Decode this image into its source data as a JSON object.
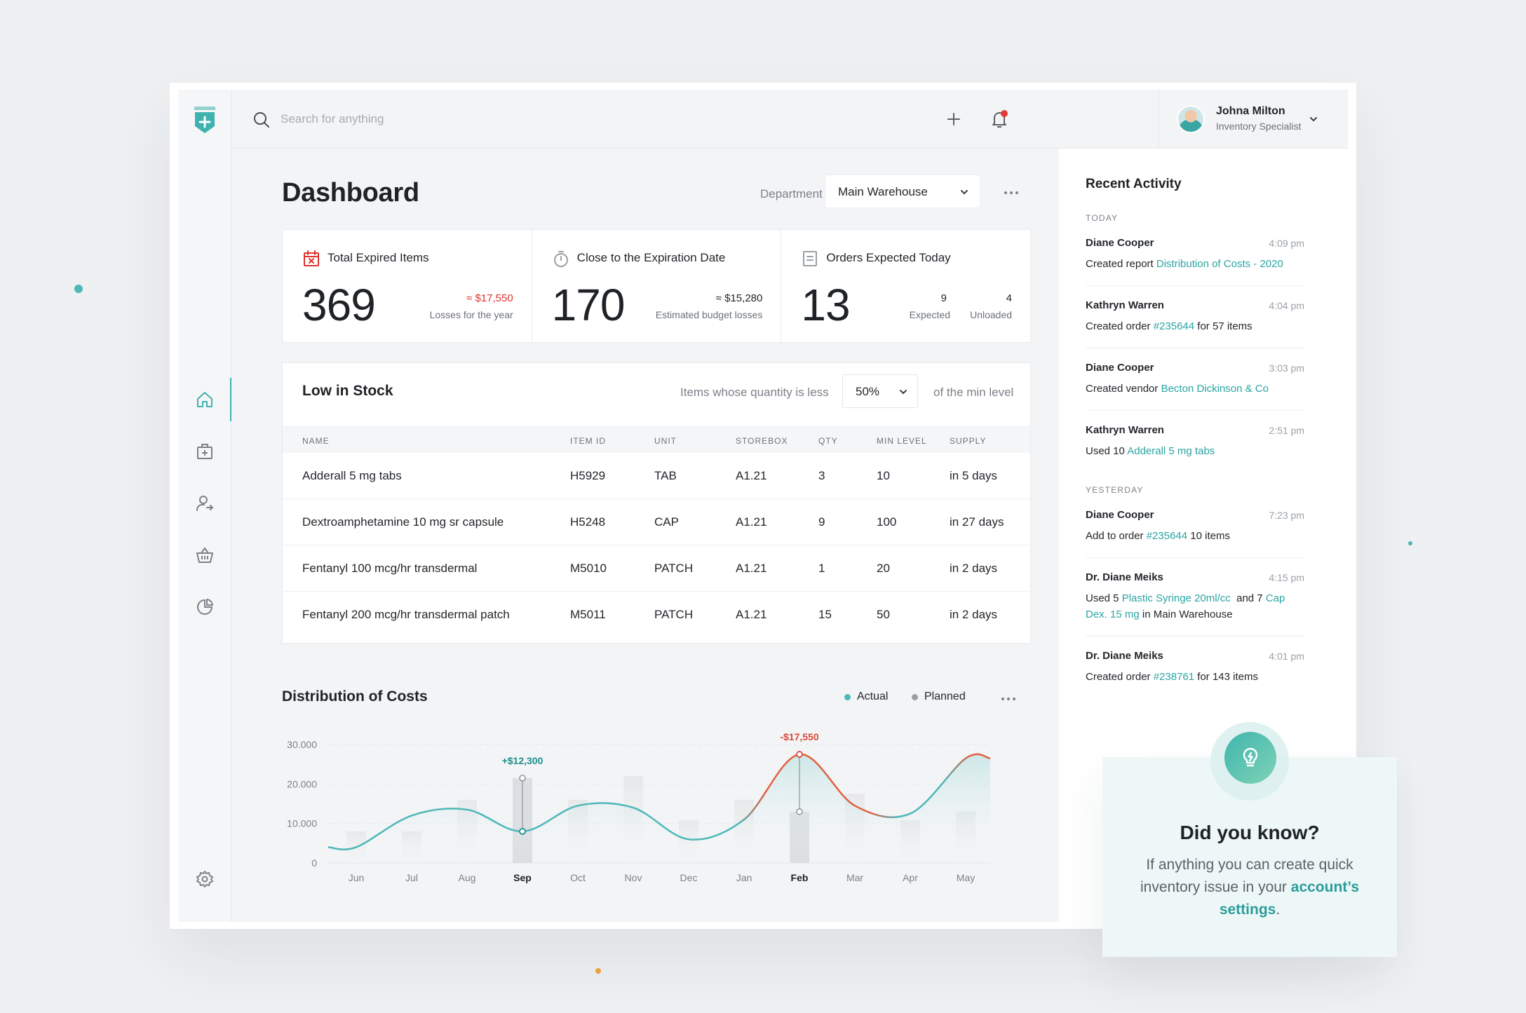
{
  "search": {
    "placeholder": "Search for anything"
  },
  "user": {
    "name": "Johna Milton",
    "role": "Inventory Specialist"
  },
  "page": {
    "title": "Dashboard",
    "department_label": "Department",
    "department_value": "Main Warehouse"
  },
  "stats": [
    {
      "title": "Total Expired Items",
      "value": "369",
      "sub_value": "≈ $17,550",
      "sub_label": "Losses for the year",
      "icon": "calendar-x-icon",
      "accent": "#e0322b"
    },
    {
      "title": "Close to the Expiration Date",
      "value": "170",
      "sub_value": "≈ $15,280",
      "sub_label": "Estimated budget losses",
      "icon": "stopwatch-icon"
    },
    {
      "title": "Orders Expected Today",
      "value": "13",
      "expected_value": "9",
      "expected_label": "Expected",
      "unloaded_value": "4",
      "unloaded_label": "Unloaded",
      "icon": "document-icon"
    }
  ],
  "low_stock": {
    "title": "Low in Stock",
    "filter_label": "Items whose quantity is less",
    "filter_value": "50%",
    "filter_suffix": "of the min level",
    "columns": [
      "Name",
      "Item ID",
      "Unit",
      "Storebox",
      "QTY",
      "Min Level",
      "Supply"
    ],
    "rows": [
      [
        "Adderall 5 mg tabs",
        "H5929",
        "TAB",
        "A1.21",
        "3",
        "10",
        "in 5 days"
      ],
      [
        "Dextroamphetamine 10 mg sr capsule",
        "H5248",
        "CAP",
        "A1.21",
        "9",
        "100",
        "in 27 days"
      ],
      [
        "Fentanyl 100 mcg/hr transdermal",
        "M5010",
        "PATCH",
        "A1.21",
        "1",
        "20",
        "in 2 days"
      ],
      [
        "Fentanyl 200 mcg/hr transdermal patch",
        "M5011",
        "PATCH",
        "A1.21",
        "15",
        "50",
        "in 2 days"
      ]
    ]
  },
  "distribution": {
    "title": "Distribution of Costs",
    "legend_actual": "Actual",
    "legend_planned": "Planned"
  },
  "chart_data": {
    "type": "area",
    "title": "Distribution of Costs",
    "categories": [
      "Jun",
      "Jul",
      "Aug",
      "Sep",
      "Oct",
      "Nov",
      "Dec",
      "Jan",
      "Feb",
      "Mar",
      "Apr",
      "May"
    ],
    "y_ticks": [
      "30.000",
      "20.000",
      "10.000",
      "0"
    ],
    "ylim": [
      0,
      30000
    ],
    "grid": true,
    "legend": "top-right",
    "highlighted": [
      "Sep",
      "Feb"
    ],
    "series": [
      {
        "name": "Actual",
        "type": "line",
        "color": "#4db8b8",
        "values": [
          4000,
          12000,
          13500,
          8000,
          14500,
          14000,
          6000,
          11000,
          27500,
          14500,
          12500,
          26500
        ]
      },
      {
        "name": "Planned",
        "type": "bar",
        "color": "#e8eaec",
        "values": [
          8000,
          8000,
          16000,
          21500,
          16000,
          22000,
          10800,
          16000,
          13000,
          17500,
          10800,
          13000
        ]
      }
    ],
    "annotations": [
      {
        "category": "Sep",
        "text": "+$12,300",
        "color": "#1e8f8d"
      },
      {
        "category": "Feb",
        "text": "-$17,550",
        "color": "#d94a3a"
      }
    ]
  },
  "activity": {
    "title": "Recent Activity",
    "sections": [
      {
        "label": "TODAY",
        "items": [
          {
            "name": "Diane Cooper",
            "time": "4:09 pm",
            "text_pre": "Created report ",
            "link": "Distribution of Costs - 2020",
            "text_post": ""
          },
          {
            "name": "Kathryn Warren",
            "time": "4:04 pm",
            "text_pre": "Created order ",
            "link": "#235644",
            "text_post": " for 57 items"
          },
          {
            "name": "Diane Cooper",
            "time": "3:03 pm",
            "text_pre": "Created vendor ",
            "link": "Becton Dickinson & Co",
            "text_post": ""
          },
          {
            "name": "Kathryn Warren",
            "time": "2:51 pm",
            "text_pre": "Used 10 ",
            "link": "Adderall 5 mg tabs",
            "text_post": ""
          }
        ]
      },
      {
        "label": "YESTERDAY",
        "items": [
          {
            "name": "Diane Cooper",
            "time": "7:23 pm",
            "text_pre": "Add to order ",
            "link": "#235644",
            "text_post": " 10 items"
          },
          {
            "name": "Dr. Diane Meiks",
            "time": "4:15 pm",
            "text_pre": "Used 5 ",
            "link": "Plastic Syringe 20ml/cc",
            "text_mid": "  and 7 ",
            "link2": "Cap Dex. 15 mg",
            "text_post": " in Main Warehouse"
          },
          {
            "name": "Dr. Diane Meiks",
            "time": "4:01 pm",
            "text_pre": "Created order ",
            "link": "#238761",
            "text_post": " for 143 items"
          }
        ]
      }
    ]
  },
  "tip": {
    "title": "Did you know?",
    "text": "If anything you can create quick inventory issue in your ",
    "link": "account’s settings",
    "suffix": "."
  },
  "colors": {
    "brand": "#3fb2b0",
    "danger": "#e0322b",
    "notification": "#e53935"
  }
}
